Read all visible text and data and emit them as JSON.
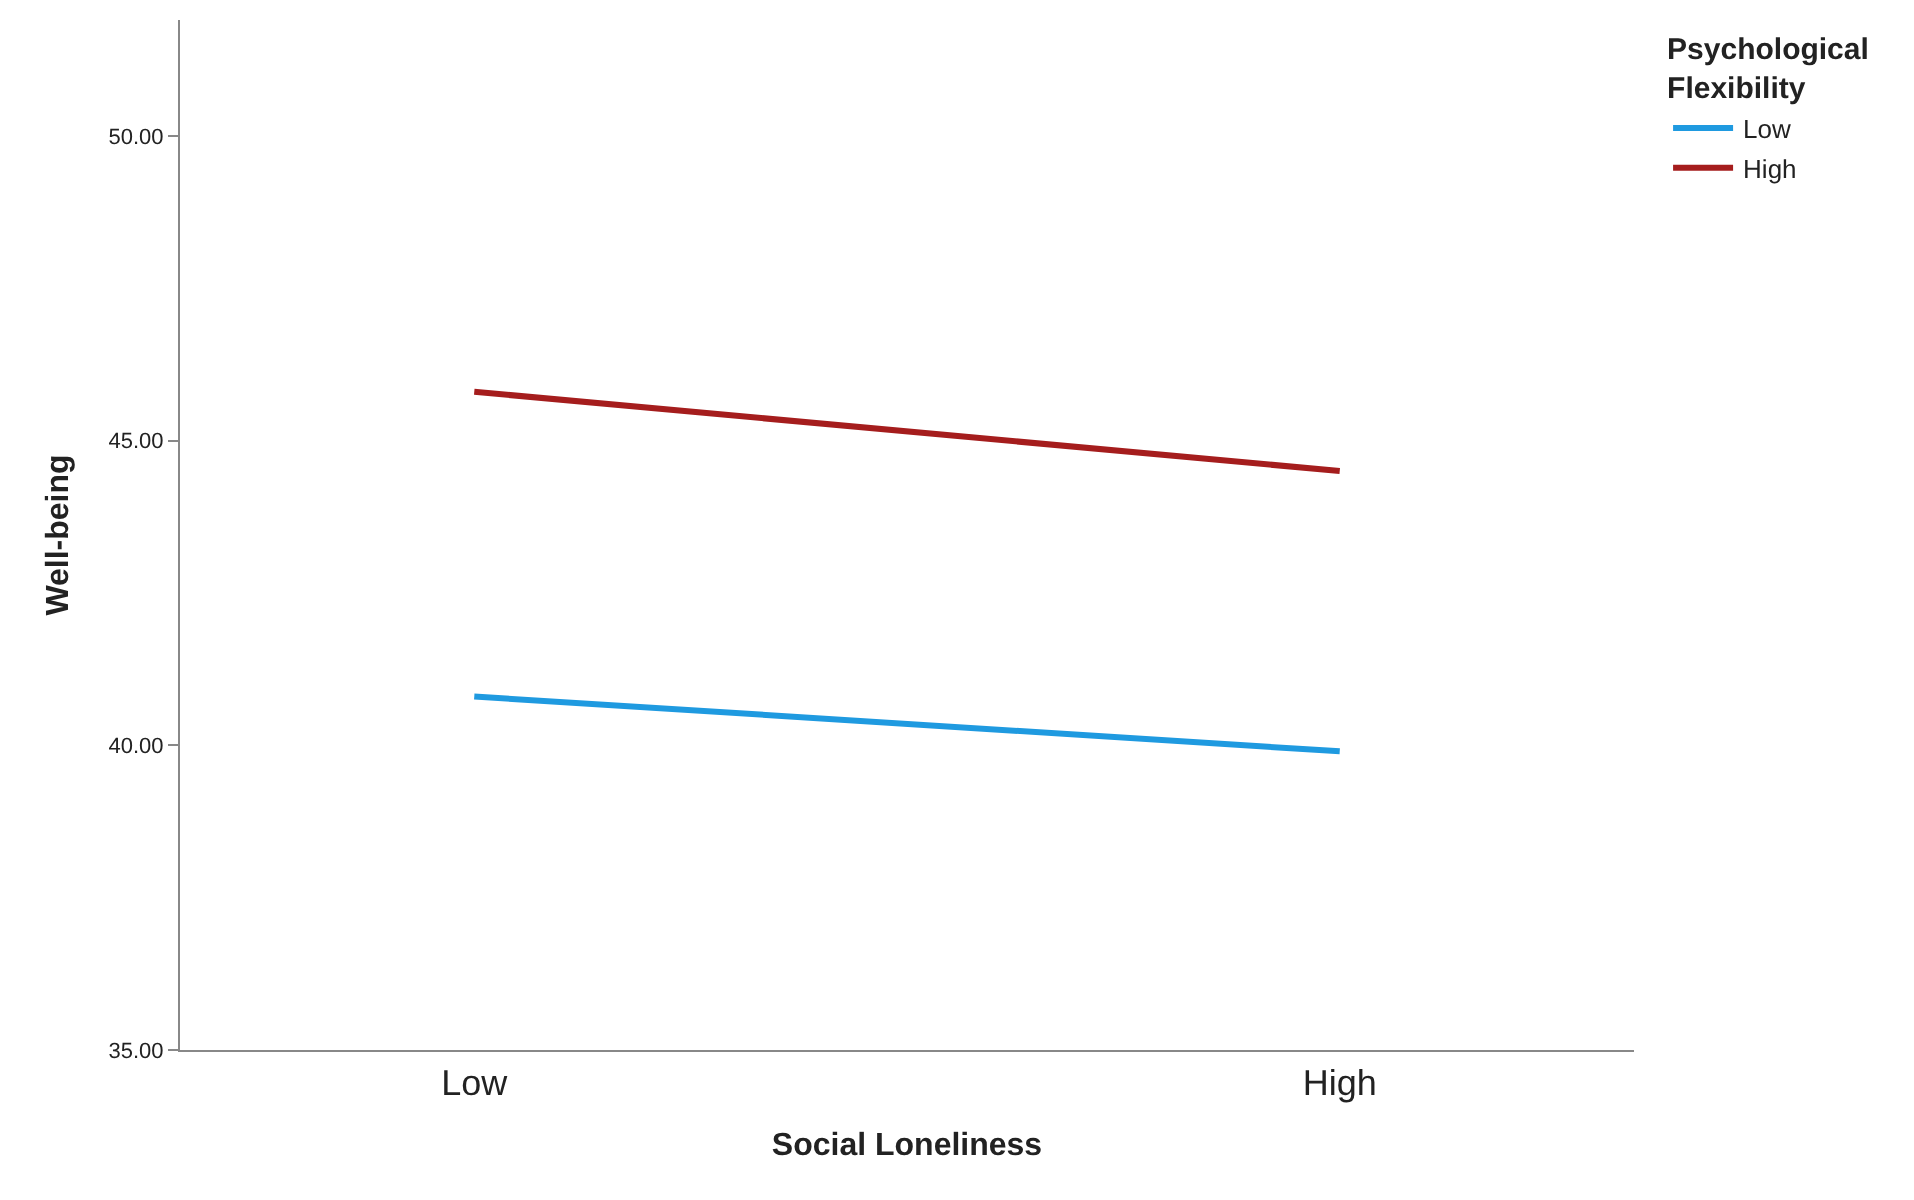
{
  "chart_data": {
    "type": "line",
    "xlabel": "Social Loneliness",
    "ylabel": "Well-being",
    "legend_title": "Psychological Flexibility",
    "categories": [
      "Low",
      "High"
    ],
    "series": [
      {
        "name": "Low",
        "color": "#1f9ae0",
        "values": [
          40.8,
          39.9
        ]
      },
      {
        "name": "High",
        "color": "#a51d1d",
        "values": [
          45.8,
          44.5
        ]
      }
    ],
    "ylim": [
      35,
      51.9
    ],
    "yticks": [
      {
        "value": 35,
        "label": "35.00"
      },
      {
        "value": 40,
        "label": "40.00"
      },
      {
        "value": 45,
        "label": "45.00"
      },
      {
        "value": 50,
        "label": "50.00"
      }
    ],
    "legend": "top right",
    "marker": "none",
    "line_style": "solid"
  }
}
